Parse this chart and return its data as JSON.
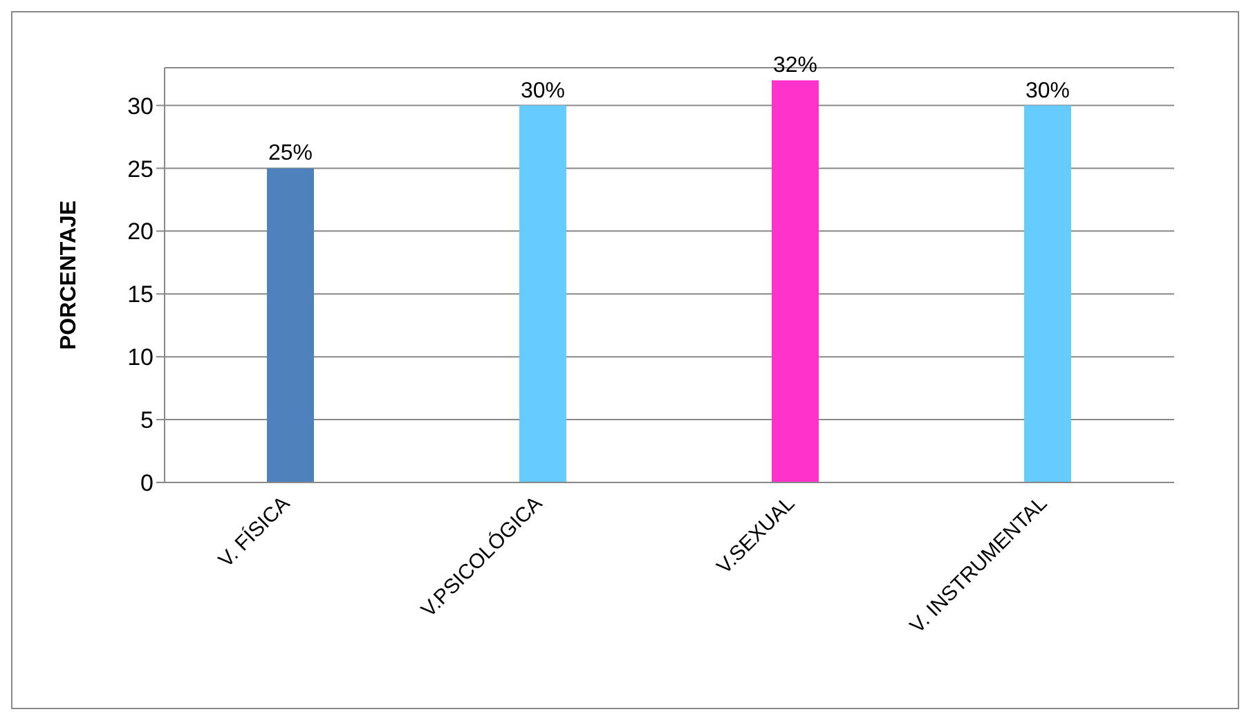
{
  "chart_data": {
    "type": "bar",
    "ylabel": "PORCENTAJE",
    "categories": [
      "V. FÍSICA",
      "V.PSICOLÓGICA",
      "V.SEXUAL",
      "V. INSTRUMENTAL"
    ],
    "values": [
      25,
      30,
      32,
      30
    ],
    "colors": [
      "#4f81bd",
      "#66ccff",
      "#ff33cc",
      "#66ccff"
    ],
    "value_labels": [
      "25%",
      "30%",
      "32%",
      "30%"
    ],
    "ylim": [
      0,
      33
    ],
    "yticks": [
      0,
      5,
      10,
      15,
      20,
      25,
      30
    ],
    "grid": "y"
  }
}
